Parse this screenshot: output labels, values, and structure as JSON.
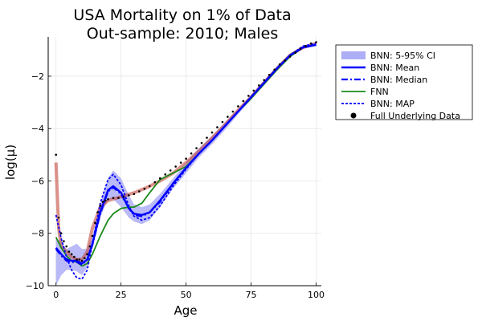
{
  "chart_data": {
    "type": "line",
    "title": [
      "USA Mortality on 1% of Data",
      "Out-sample: 2010; Males"
    ],
    "xlabel": "Age",
    "ylabel": "log(μ)",
    "xlim": [
      -3,
      102
    ],
    "ylim": [
      -10,
      -0.5
    ],
    "xticks": [
      0,
      25,
      50,
      75,
      100
    ],
    "yticks": [
      -10,
      -8,
      -6,
      -4,
      -2
    ],
    "xtick_labels": [
      "0",
      "25",
      "50",
      "75",
      "100"
    ],
    "ytick_labels": [
      "−10",
      "−8",
      "−6",
      "−4",
      "−2"
    ],
    "grid": true,
    "legend_position": "outside-top-right",
    "colors": {
      "ci_band": "#aeaef7",
      "bnn_mean": "#0000ff",
      "bnn_median": "#0000ff",
      "fnn": "#1a8a1a",
      "bnn_map": "#0000ff",
      "data": "#000000",
      "unlabeled_red": "#c0392b"
    },
    "series": [
      {
        "name": "BNN: 5-95% CI",
        "style": "band",
        "x": [
          0,
          2,
          4,
          6,
          8,
          10,
          12,
          14,
          17,
          20,
          22,
          25,
          28,
          30,
          33,
          36,
          40,
          45,
          50,
          55,
          60,
          65,
          70,
          75,
          80,
          85,
          90,
          95,
          100
        ],
        "lower": [
          -10.0,
          -9.6,
          -9.4,
          -9.4,
          -9.45,
          -9.6,
          -9.3,
          -8.6,
          -7.4,
          -6.7,
          -6.7,
          -7.0,
          -7.4,
          -7.55,
          -7.65,
          -7.5,
          -7.0,
          -6.3,
          -5.7,
          -5.1,
          -4.6,
          -4.05,
          -3.45,
          -2.9,
          -2.3,
          -1.75,
          -1.25,
          -0.95,
          -0.85
        ],
        "upper": [
          -8.2,
          -8.3,
          -8.6,
          -8.5,
          -8.4,
          -8.6,
          -8.6,
          -8.1,
          -6.9,
          -5.9,
          -5.6,
          -5.9,
          -6.55,
          -6.9,
          -7.0,
          -6.9,
          -6.5,
          -5.9,
          -5.3,
          -4.75,
          -4.3,
          -3.75,
          -3.25,
          -2.7,
          -2.15,
          -1.6,
          -1.15,
          -0.85,
          -0.7
        ]
      },
      {
        "name": "BNN: Mean",
        "style": "solid",
        "x": [
          0,
          2,
          4,
          6,
          8,
          10,
          12,
          14,
          17,
          20,
          22,
          25,
          28,
          30,
          33,
          36,
          40,
          45,
          50,
          55,
          60,
          65,
          70,
          75,
          80,
          85,
          90,
          95,
          100
        ],
        "y": [
          -8.55,
          -8.8,
          -9.0,
          -9.05,
          -9.05,
          -9.15,
          -9.0,
          -8.4,
          -7.2,
          -6.35,
          -6.2,
          -6.45,
          -7.05,
          -7.25,
          -7.3,
          -7.2,
          -6.75,
          -6.1,
          -5.5,
          -4.95,
          -4.45,
          -3.9,
          -3.35,
          -2.8,
          -2.25,
          -1.7,
          -1.2,
          -0.9,
          -0.8
        ]
      },
      {
        "name": "BNN: Median",
        "style": "dashdot",
        "x": [
          0,
          2,
          4,
          6,
          8,
          10,
          12,
          14,
          17,
          20,
          22,
          25,
          28,
          30,
          33,
          36,
          40,
          45,
          50,
          55,
          60,
          65,
          70,
          75,
          80,
          85,
          90,
          95,
          100
        ],
        "y": [
          -8.6,
          -8.85,
          -9.05,
          -9.1,
          -9.1,
          -9.2,
          -9.0,
          -8.45,
          -7.25,
          -6.4,
          -6.25,
          -6.5,
          -7.05,
          -7.3,
          -7.35,
          -7.2,
          -6.8,
          -6.1,
          -5.5,
          -4.95,
          -4.45,
          -3.9,
          -3.35,
          -2.8,
          -2.25,
          -1.7,
          -1.2,
          -0.9,
          -0.8
        ]
      },
      {
        "name": "FNN",
        "style": "solid",
        "x": [
          0,
          2,
          4,
          6,
          8,
          10,
          12,
          14,
          17,
          20,
          22,
          25,
          28,
          30,
          33,
          36,
          40,
          45,
          50,
          55,
          60,
          65,
          70,
          75,
          80,
          85,
          90,
          95,
          100
        ],
        "y": [
          -8.15,
          -8.55,
          -8.85,
          -9.05,
          -9.1,
          -9.25,
          -9.15,
          -8.8,
          -8.1,
          -7.5,
          -7.25,
          -7.05,
          -7.0,
          -7.0,
          -6.85,
          -6.45,
          -5.95,
          -5.7,
          -5.45,
          -4.95,
          -4.45,
          -3.9,
          -3.35,
          -2.85,
          -2.3,
          -1.75,
          -1.25,
          -0.9,
          -0.8
        ]
      },
      {
        "name": "BNN: MAP",
        "style": "dotted",
        "x": [
          0,
          2,
          4,
          6,
          8,
          10,
          12,
          14,
          17,
          20,
          22,
          25,
          28,
          30,
          33,
          36,
          40,
          45,
          50,
          55,
          60,
          65,
          70,
          75,
          80,
          85,
          90,
          95,
          100
        ],
        "y": [
          -7.3,
          -8.2,
          -8.9,
          -9.4,
          -9.7,
          -9.75,
          -9.4,
          -8.4,
          -6.85,
          -5.95,
          -5.75,
          -6.15,
          -6.95,
          -7.35,
          -7.5,
          -7.4,
          -6.95,
          -6.2,
          -5.55,
          -4.95,
          -4.45,
          -3.9,
          -3.35,
          -2.8,
          -2.25,
          -1.7,
          -1.2,
          -0.85,
          -0.75
        ]
      },
      {
        "name": "Full Underlying Data",
        "style": "points",
        "x": [
          0,
          1,
          2,
          3,
          4,
          5,
          6,
          7,
          8,
          9,
          10,
          11,
          12,
          13,
          14,
          15,
          16,
          17,
          18,
          19,
          20,
          22,
          24,
          26,
          28,
          30,
          32,
          34,
          36,
          38,
          40,
          42,
          44,
          46,
          48,
          50,
          52,
          54,
          56,
          58,
          60,
          62,
          64,
          66,
          68,
          70,
          72,
          74,
          76,
          78,
          80,
          82,
          84,
          86,
          88,
          90,
          92,
          94,
          96,
          98,
          100
        ],
        "y": [
          -5.0,
          -7.4,
          -8.0,
          -8.3,
          -8.5,
          -8.7,
          -8.8,
          -8.9,
          -9.0,
          -9.0,
          -9.05,
          -8.95,
          -8.8,
          -8.5,
          -8.1,
          -7.6,
          -7.2,
          -6.95,
          -6.8,
          -6.75,
          -6.7,
          -6.65,
          -6.65,
          -6.6,
          -6.55,
          -6.5,
          -6.4,
          -6.3,
          -6.2,
          -6.05,
          -5.9,
          -5.75,
          -5.6,
          -5.45,
          -5.3,
          -5.15,
          -4.95,
          -4.75,
          -4.55,
          -4.35,
          -4.15,
          -3.95,
          -3.75,
          -3.55,
          -3.35,
          -3.15,
          -2.95,
          -2.75,
          -2.55,
          -2.35,
          -2.15,
          -1.95,
          -1.75,
          -1.55,
          -1.4,
          -1.25,
          -1.1,
          -0.95,
          -0.85,
          -0.75,
          -0.7
        ]
      },
      {
        "style": "solid-thick",
        "x": [
          0,
          1,
          2,
          4,
          6,
          8,
          10,
          12,
          14,
          17,
          20,
          25,
          30,
          35,
          40,
          45,
          50,
          55,
          60,
          65,
          70,
          75,
          80,
          85,
          90,
          95,
          100
        ],
        "y": [
          -5.3,
          -7.8,
          -8.5,
          -8.7,
          -8.9,
          -9.0,
          -9.0,
          -8.7,
          -7.8,
          -7.0,
          -6.75,
          -6.6,
          -6.45,
          -6.25,
          -6.0,
          -5.7,
          -5.3,
          -4.85,
          -4.35,
          -3.85,
          -3.3,
          -2.8,
          -2.25,
          -1.7,
          -1.2,
          -0.9,
          -0.75
        ]
      }
    ]
  }
}
